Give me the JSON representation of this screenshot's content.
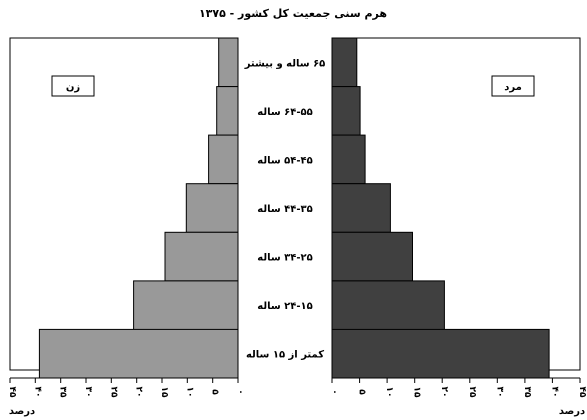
{
  "chart_data": {
    "type": "bar",
    "title": "هرم سنی جمعیت کل کشور - ۱۳۷۵",
    "categories": [
      "۶۵ ساله و بیشتر",
      "۶۴-۵۵ ساله",
      "۵۴-۴۵ ساله",
      "۴۴-۳۵  ساله",
      "۳۴-۲۵ ساله",
      "۲۴-۱۵ ساله",
      "کمتر از ۱۵ ساله"
    ],
    "series": [
      {
        "name": "زن",
        "values": [
          3.8,
          4.2,
          5.8,
          10.2,
          14.4,
          20.6,
          39.2
        ],
        "color": "#999999"
      },
      {
        "name": "مرد",
        "values": [
          4.5,
          5.1,
          6.0,
          10.6,
          14.6,
          20.4,
          39.4
        ],
        "color": "#404040"
      }
    ],
    "xlabel": "درصد",
    "xlim_left": [
      0,
      45
    ],
    "xlim_right": [
      0,
      45
    ],
    "left_ticks": [
      "۴۵",
      "۴۰",
      "۳۵",
      "۳۰",
      "۲۵",
      "۲۰",
      "۱۵",
      "۱۰",
      "۵",
      "۰"
    ],
    "right_ticks": [
      "۰",
      "۵",
      "۱۰",
      "۱۵",
      "۲۰",
      "۲۵",
      "۳۰",
      "۳۵",
      "۴۰",
      "۴۵"
    ],
    "legend_left": "زن",
    "legend_right": "مرد",
    "grid": false
  }
}
